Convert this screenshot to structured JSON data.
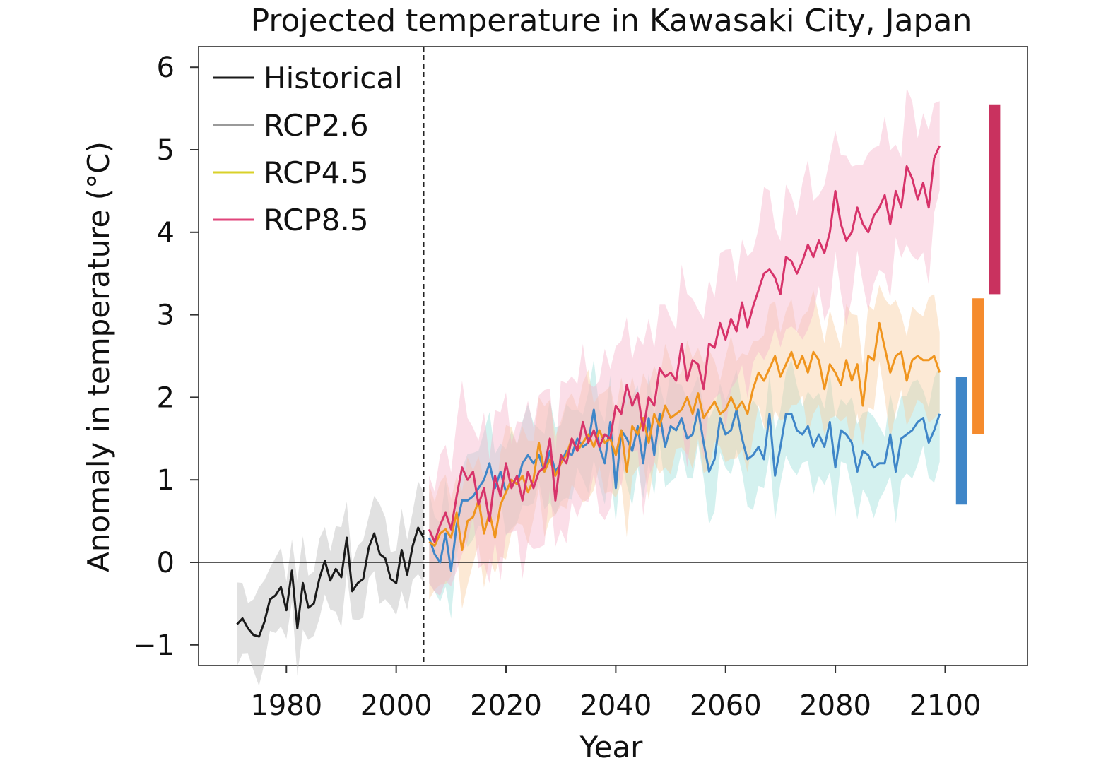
{
  "chart_data": {
    "type": "line",
    "title": "Projected temperature in Kawasaki City, Japan",
    "xlabel": "Year",
    "ylabel": "Anomaly in temperature (°C)",
    "xlim": [
      1964,
      2115
    ],
    "ylim": [
      -1.25,
      6.25
    ],
    "xticks": [
      1980,
      2000,
      2020,
      2040,
      2060,
      2080,
      2100
    ],
    "yticks": [
      -1,
      0,
      1,
      2,
      3,
      4,
      5,
      6
    ],
    "ytick_labels": [
      "−1",
      "0",
      "1",
      "2",
      "3",
      "4",
      "5",
      "6"
    ],
    "zero_line": 0,
    "reference_year_line": 2005,
    "grid": false,
    "legend_position": "top-left",
    "legend": [
      {
        "label": "Historical",
        "color": "#1a1a1a"
      },
      {
        "label": "RCP2.6",
        "color": "#9a9a9a"
      },
      {
        "label": "RCP4.5",
        "color": "#d9d12a"
      },
      {
        "label": "RCP8.5",
        "color": "#e0457b"
      }
    ],
    "series": [
      {
        "name": "Historical",
        "color": "#1a1a1a",
        "band_color": "#bdbdbd",
        "x": [
          1971,
          1972,
          1973,
          1974,
          1975,
          1976,
          1977,
          1978,
          1979,
          1980,
          1981,
          1982,
          1983,
          1984,
          1985,
          1986,
          1987,
          1988,
          1989,
          1990,
          1991,
          1992,
          1993,
          1994,
          1995,
          1996,
          1997,
          1998,
          1999,
          2000,
          2001,
          2002,
          2003,
          2004,
          2005
        ],
        "y": [
          -0.75,
          -0.68,
          -0.8,
          -0.88,
          -0.9,
          -0.72,
          -0.45,
          -0.4,
          -0.3,
          -0.58,
          -0.1,
          -0.8,
          -0.25,
          -0.55,
          -0.5,
          -0.2,
          0.02,
          -0.22,
          -0.08,
          -0.18,
          0.3,
          -0.35,
          -0.25,
          -0.2,
          0.18,
          0.35,
          0.1,
          0.05,
          -0.2,
          -0.25,
          0.15,
          -0.15,
          0.2,
          0.42,
          0.3
        ],
        "band_half": 0.45
      },
      {
        "name": "RCP2.6",
        "color": "#3f86c8",
        "band_color": "#9fe0dc",
        "x": [
          2006,
          2007,
          2008,
          2009,
          2010,
          2011,
          2012,
          2013,
          2014,
          2015,
          2016,
          2017,
          2018,
          2019,
          2020,
          2021,
          2022,
          2023,
          2024,
          2025,
          2026,
          2027,
          2028,
          2029,
          2030,
          2031,
          2032,
          2033,
          2034,
          2035,
          2036,
          2037,
          2038,
          2039,
          2040,
          2041,
          2042,
          2043,
          2044,
          2045,
          2046,
          2047,
          2048,
          2049,
          2050,
          2051,
          2052,
          2053,
          2054,
          2055,
          2056,
          2057,
          2058,
          2059,
          2060,
          2061,
          2062,
          2063,
          2064,
          2065,
          2066,
          2067,
          2068,
          2069,
          2070,
          2071,
          2072,
          2073,
          2074,
          2075,
          2076,
          2077,
          2078,
          2079,
          2080,
          2081,
          2082,
          2083,
          2084,
          2085,
          2086,
          2087,
          2088,
          2089,
          2090,
          2091,
          2092,
          2093,
          2094,
          2095,
          2096,
          2097,
          2098,
          2099
        ],
        "y": [
          0.3,
          0.1,
          0.0,
          0.35,
          -0.1,
          0.45,
          0.75,
          0.75,
          0.8,
          0.9,
          1.0,
          1.2,
          0.9,
          1.1,
          0.85,
          1.0,
          0.95,
          1.2,
          1.3,
          1.2,
          1.3,
          1.1,
          1.35,
          1.1,
          1.2,
          1.35,
          1.3,
          1.5,
          1.4,
          1.45,
          1.85,
          1.4,
          1.2,
          1.7,
          0.9,
          1.6,
          1.5,
          1.35,
          1.65,
          1.2,
          1.75,
          1.3,
          1.8,
          1.4,
          1.65,
          1.6,
          1.75,
          1.5,
          1.55,
          1.85,
          1.45,
          1.1,
          1.25,
          1.75,
          1.55,
          1.6,
          1.85,
          1.5,
          1.25,
          1.3,
          1.4,
          1.25,
          1.8,
          1.05,
          1.4,
          1.8,
          1.8,
          1.6,
          1.55,
          1.65,
          1.4,
          1.55,
          1.4,
          1.7,
          1.15,
          1.6,
          1.55,
          1.45,
          1.1,
          1.35,
          1.3,
          1.15,
          1.2,
          1.2,
          1.55,
          1.1,
          1.5,
          1.55,
          1.6,
          1.7,
          1.75,
          1.45,
          1.6,
          1.8
        ],
        "band_half": 0.5
      },
      {
        "name": "RCP4.5",
        "color": "#f0951e",
        "band_color": "#f9cfa2",
        "x": [
          2006,
          2007,
          2008,
          2009,
          2010,
          2011,
          2012,
          2013,
          2014,
          2015,
          2016,
          2017,
          2018,
          2019,
          2020,
          2021,
          2022,
          2023,
          2024,
          2025,
          2026,
          2027,
          2028,
          2029,
          2030,
          2031,
          2032,
          2033,
          2034,
          2035,
          2036,
          2037,
          2038,
          2039,
          2040,
          2041,
          2042,
          2043,
          2044,
          2045,
          2046,
          2047,
          2048,
          2049,
          2050,
          2051,
          2052,
          2053,
          2054,
          2055,
          2056,
          2057,
          2058,
          2059,
          2060,
          2061,
          2062,
          2063,
          2064,
          2065,
          2066,
          2067,
          2068,
          2069,
          2070,
          2071,
          2072,
          2073,
          2074,
          2075,
          2076,
          2077,
          2078,
          2079,
          2080,
          2081,
          2082,
          2083,
          2084,
          2085,
          2086,
          2087,
          2088,
          2089,
          2090,
          2091,
          2092,
          2093,
          2094,
          2095,
          2096,
          2097,
          2098,
          2099
        ],
        "y": [
          0.25,
          0.2,
          0.35,
          0.4,
          0.3,
          0.6,
          0.15,
          0.5,
          0.55,
          0.75,
          0.35,
          0.6,
          0.3,
          0.7,
          0.85,
          1.0,
          0.95,
          1.05,
          0.85,
          1.0,
          1.45,
          1.1,
          1.25,
          1.05,
          1.2,
          1.3,
          1.5,
          1.35,
          1.45,
          1.55,
          1.4,
          1.6,
          1.45,
          1.5,
          1.3,
          1.6,
          1.1,
          1.65,
          1.55,
          1.75,
          1.45,
          1.8,
          1.65,
          1.9,
          1.75,
          1.8,
          1.85,
          2.0,
          1.8,
          2.05,
          1.75,
          1.85,
          1.95,
          1.8,
          1.85,
          2.0,
          1.85,
          1.95,
          1.8,
          2.1,
          2.3,
          2.2,
          2.35,
          2.5,
          2.25,
          2.4,
          2.55,
          2.35,
          2.5,
          2.3,
          2.55,
          2.45,
          2.1,
          2.4,
          2.3,
          2.15,
          2.45,
          2.2,
          2.4,
          1.9,
          2.5,
          2.45,
          2.9,
          2.6,
          2.3,
          2.5,
          2.55,
          2.2,
          2.45,
          2.5,
          2.45,
          2.45,
          2.5,
          2.3
        ],
        "band_half": 0.6
      },
      {
        "name": "RCP8.5",
        "color": "#d7336a",
        "band_color": "#f7b6cc",
        "x": [
          2006,
          2007,
          2008,
          2009,
          2010,
          2011,
          2012,
          2013,
          2014,
          2015,
          2016,
          2017,
          2018,
          2019,
          2020,
          2021,
          2022,
          2023,
          2024,
          2025,
          2026,
          2027,
          2028,
          2029,
          2030,
          2031,
          2032,
          2033,
          2034,
          2035,
          2036,
          2037,
          2038,
          2039,
          2040,
          2041,
          2042,
          2043,
          2044,
          2045,
          2046,
          2047,
          2048,
          2049,
          2050,
          2051,
          2052,
          2053,
          2054,
          2055,
          2056,
          2057,
          2058,
          2059,
          2060,
          2061,
          2062,
          2063,
          2064,
          2065,
          2066,
          2067,
          2068,
          2069,
          2070,
          2071,
          2072,
          2073,
          2074,
          2075,
          2076,
          2077,
          2078,
          2079,
          2080,
          2081,
          2082,
          2083,
          2084,
          2085,
          2086,
          2087,
          2088,
          2089,
          2090,
          2091,
          2092,
          2093,
          2094,
          2095,
          2096,
          2097,
          2098,
          2099
        ],
        "y": [
          0.4,
          0.25,
          0.45,
          0.6,
          0.4,
          0.8,
          1.15,
          1.0,
          1.1,
          0.7,
          0.9,
          0.5,
          1.05,
          0.8,
          1.2,
          0.9,
          1.05,
          0.75,
          1.1,
          0.9,
          1.1,
          1.15,
          1.5,
          0.75,
          1.3,
          1.2,
          1.5,
          1.35,
          1.7,
          1.45,
          1.6,
          1.4,
          1.55,
          1.5,
          1.9,
          1.8,
          2.15,
          1.9,
          2.05,
          1.6,
          2.0,
          1.9,
          2.35,
          2.25,
          2.3,
          2.2,
          2.65,
          2.2,
          2.45,
          2.4,
          2.1,
          2.65,
          2.6,
          2.9,
          2.7,
          2.95,
          2.8,
          3.15,
          2.85,
          3.1,
          3.3,
          3.5,
          3.55,
          3.45,
          3.25,
          3.7,
          3.65,
          3.5,
          3.65,
          3.85,
          3.7,
          3.9,
          3.75,
          4.0,
          4.5,
          4.1,
          3.9,
          4.0,
          4.3,
          4.1,
          4.0,
          4.2,
          4.3,
          4.45,
          4.1,
          4.5,
          4.3,
          4.8,
          4.65,
          4.4,
          4.6,
          4.3,
          4.9,
          5.05
        ],
        "band_half": 0.8
      }
    ],
    "range_bars": [
      {
        "name": "RCP2.6",
        "color": "#3f86c8",
        "x": 2103,
        "low": 0.7,
        "high": 2.25
      },
      {
        "name": "RCP4.5",
        "color": "#f58b2d",
        "x": 2106,
        "low": 1.55,
        "high": 3.2
      },
      {
        "name": "RCP8.5",
        "color": "#c9325f",
        "x": 2109,
        "low": 3.25,
        "high": 5.55
      }
    ]
  }
}
